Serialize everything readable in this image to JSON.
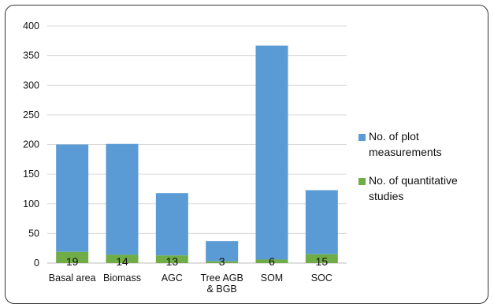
{
  "colors": {
    "plot": "#5b9bd5",
    "studies": "#70ad47",
    "grid": "#d9d9d9",
    "axis": "#bfbfbf"
  },
  "chart_data": {
    "type": "bar",
    "stacked": true,
    "categories": [
      "Basal area",
      "Biomass",
      "AGC",
      "Tree AGB & BGB",
      "SOM",
      "SOC"
    ],
    "category_lines": [
      [
        "Basal area"
      ],
      [
        "Biomass"
      ],
      [
        "AGC"
      ],
      [
        "Tree AGB",
        "& BGB"
      ],
      [
        "SOM"
      ],
      [
        "SOC"
      ]
    ],
    "series": [
      {
        "name": "No. of quantitative studies",
        "values": [
          19,
          14,
          13,
          3,
          6,
          15
        ],
        "color": "#70ad47",
        "data_labels": [
          "19",
          "14",
          "13",
          "3",
          "6",
          "15"
        ]
      },
      {
        "name": "No. of plot measurements",
        "values": [
          181,
          187,
          105,
          34,
          361,
          108
        ],
        "color": "#5b9bd5"
      }
    ],
    "ylim": [
      0,
      400
    ],
    "yticks": [
      "0",
      "50",
      "100",
      "150",
      "200",
      "250",
      "300",
      "350",
      "400"
    ],
    "grid": true,
    "legend_position": "right",
    "legend": [
      {
        "lines": [
          "No. of plot",
          "measurements"
        ],
        "color": "#5b9bd5"
      },
      {
        "lines": [
          "No. of quantitative",
          "studies"
        ],
        "color": "#70ad47"
      }
    ]
  }
}
